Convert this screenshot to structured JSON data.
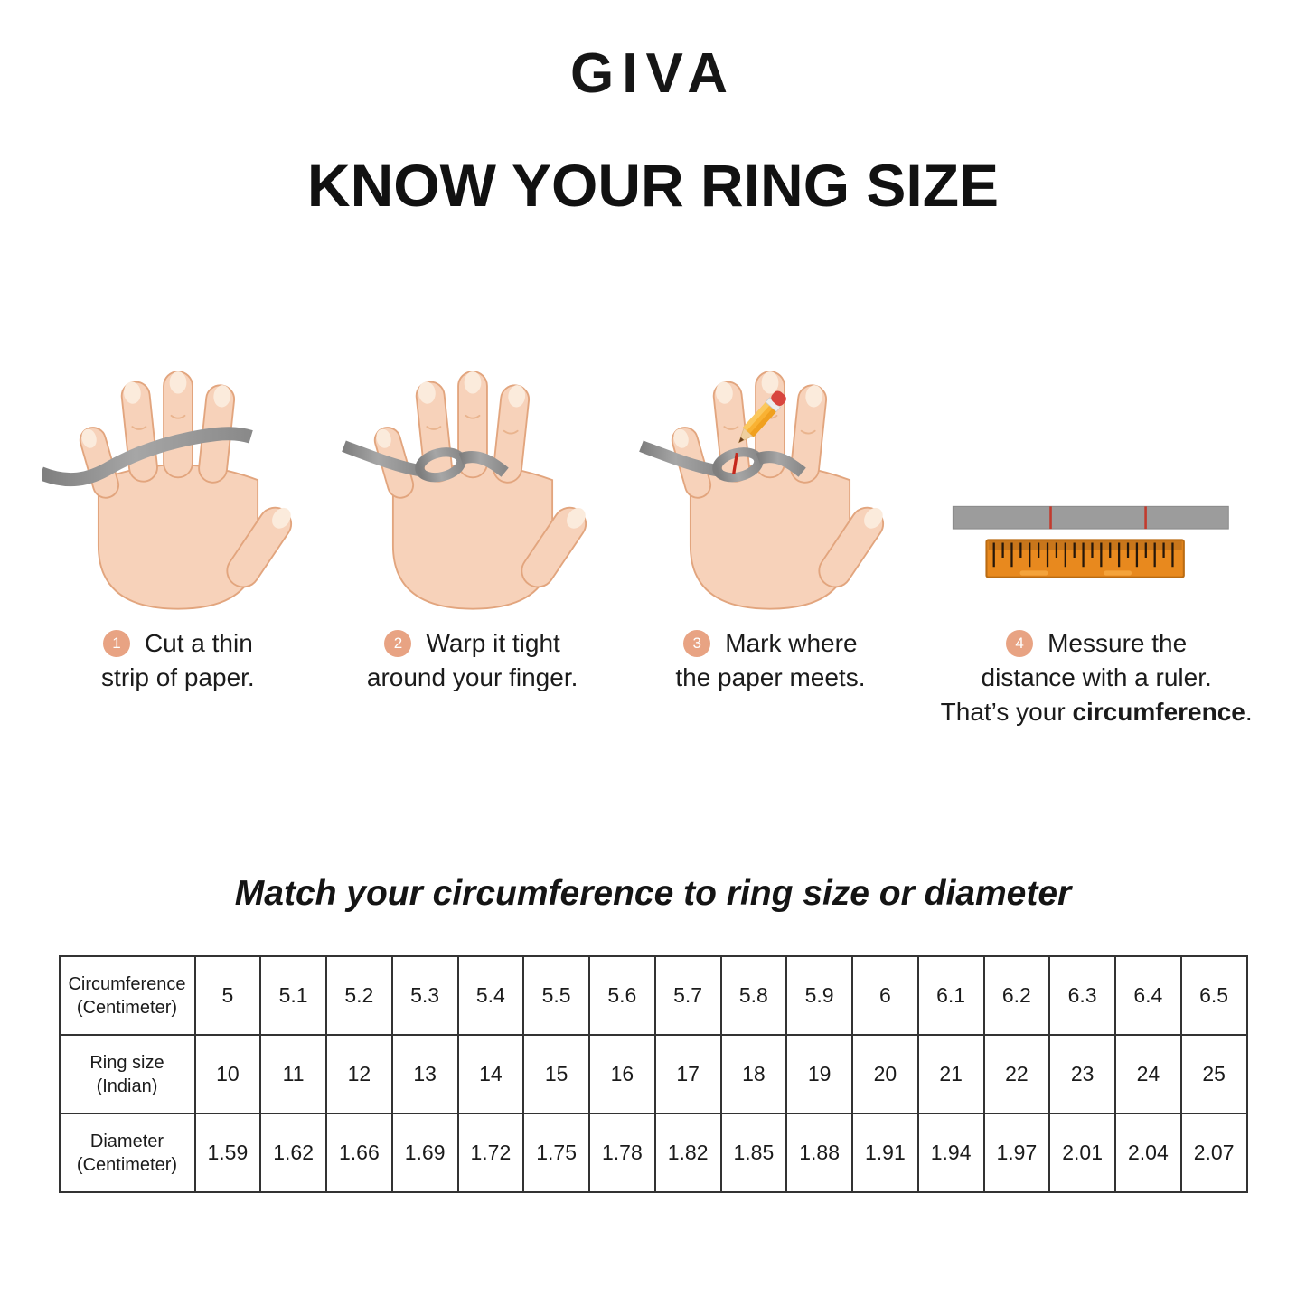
{
  "brand": "GIVA",
  "title": "KNOW YOUR RING SIZE",
  "steps": [
    {
      "number": "1",
      "lines": [
        "Cut a thin",
        "strip of paper."
      ]
    },
    {
      "number": "2",
      "lines": [
        "Warp it tight",
        "around your finger."
      ]
    },
    {
      "number": "3",
      "lines": [
        "Mark where",
        "the paper meets."
      ]
    },
    {
      "number": "4",
      "lines": [
        "Messure the",
        "distance with a ruler."
      ],
      "line3_prefix": "That’s your ",
      "line3_bold": "circumference",
      "line3_suffix": "."
    }
  ],
  "table_heading": "Match your circumference to ring size or diameter",
  "size_table": {
    "rows": [
      {
        "label_line1": "Circumference",
        "label_line2": "(Centimeter)",
        "values": [
          "5",
          "5.1",
          "5.2",
          "5.3",
          "5.4",
          "5.5",
          "5.6",
          "5.7",
          "5.8",
          "5.9",
          "6",
          "6.1",
          "6.2",
          "6.3",
          "6.4",
          "6.5"
        ]
      },
      {
        "label_line1": "Ring size",
        "label_line2": "(Indian)",
        "values": [
          "10",
          "11",
          "12",
          "13",
          "14",
          "15",
          "16",
          "17",
          "18",
          "19",
          "20",
          "21",
          "22",
          "23",
          "24",
          "25"
        ]
      },
      {
        "label_line1": "Diameter",
        "label_line2": "(Centimeter)",
        "values": [
          "1.59",
          "1.62",
          "1.66",
          "1.69",
          "1.72",
          "1.75",
          "1.78",
          "1.82",
          "1.85",
          "1.88",
          "1.91",
          "1.94",
          "1.97",
          "2.01",
          "2.04",
          "2.07"
        ]
      }
    ]
  },
  "illustrations": {
    "step1_icon": "hand-with-paper-strip",
    "step2_icon": "hand-with-strip-wrapped-around-finger",
    "step3_icon": "hand-with-pencil-marking-strip",
    "step4_icon": "paper-strip-and-ruler"
  },
  "colors": {
    "background": "#FFFFFF",
    "text": "#1B1B1B",
    "step_badge": "#E8A383",
    "badge_number": "#FFFFFF",
    "paper_strip_gray": "#8F8F8F",
    "ruler_orange": "#E8891E",
    "ruler_band": "#C8761B",
    "mark_red": "#C5271C",
    "hand_skin": "#F7D2BA",
    "hand_outline": "#E2A57E",
    "pencil_yellow": "#F9B233",
    "eraser_red": "#D8453E",
    "table_border": "#333333"
  }
}
